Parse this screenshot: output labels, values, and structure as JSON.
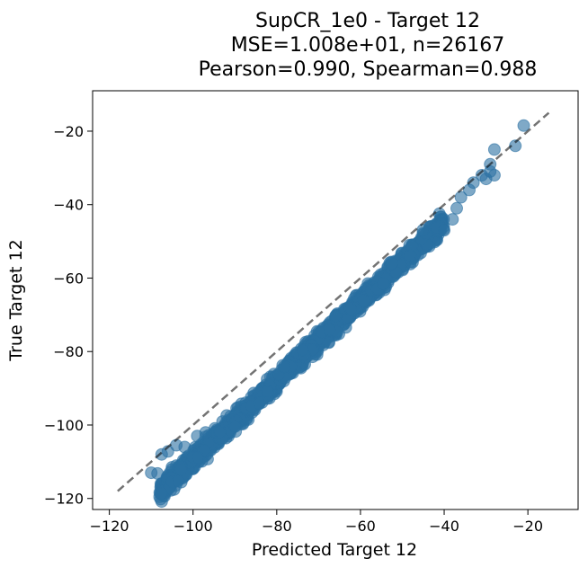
{
  "chart_data": {
    "type": "scatter",
    "title_lines": [
      "SupCR_1e0 - Target 12",
      "MSE=1.008e+01, n=26167",
      "Pearson=0.990, Spearman=0.988"
    ],
    "xlabel": "Predicted Target 12",
    "ylabel": "True Target 12",
    "xlim": [
      -124,
      -8
    ],
    "ylim": [
      -123,
      -9
    ],
    "xticks": [
      -120,
      -100,
      -80,
      -60,
      -40,
      -20
    ],
    "yticks": [
      -120,
      -100,
      -80,
      -60,
      -40,
      -20
    ],
    "xtick_labels": [
      "−120",
      "−100",
      "−80",
      "−60",
      "−40",
      "−20"
    ],
    "ytick_labels": [
      "−120",
      "−100",
      "−80",
      "−60",
      "−40",
      "−20"
    ],
    "grid": false,
    "point_color": "#2a6fa1",
    "point_alpha": 0.6,
    "reference_line": {
      "x": [
        -118,
        -15
      ],
      "y": [
        -118,
        -15
      ],
      "style": "dashed",
      "color": "#000000",
      "alpha": 0.55
    },
    "scatter_band": {
      "description": "dense points along y = 1.08*x - 1.5",
      "x_range": [
        -108,
        -40
      ],
      "slope": 1.08,
      "intercept": -1.5
    },
    "points": [
      [
        -110,
        -113
      ],
      [
        -108.5,
        -113.2
      ],
      [
        -107.5,
        -108
      ],
      [
        -106,
        -107.2
      ],
      [
        -104,
        -105.5
      ],
      [
        -102,
        -106
      ],
      [
        -99,
        -103
      ],
      [
        -97,
        -102
      ],
      [
        -40,
        -47
      ],
      [
        -38,
        -44
      ],
      [
        -37,
        -41
      ],
      [
        -36,
        -38
      ],
      [
        -34,
        -36
      ],
      [
        -33,
        -34
      ],
      [
        -31,
        -32
      ],
      [
        -30,
        -33
      ],
      [
        -29,
        -31
      ],
      [
        -29,
        -29
      ],
      [
        -28,
        -32
      ],
      [
        -28,
        -25
      ],
      [
        -23,
        -24
      ],
      [
        -21,
        -18.5
      ]
    ]
  }
}
